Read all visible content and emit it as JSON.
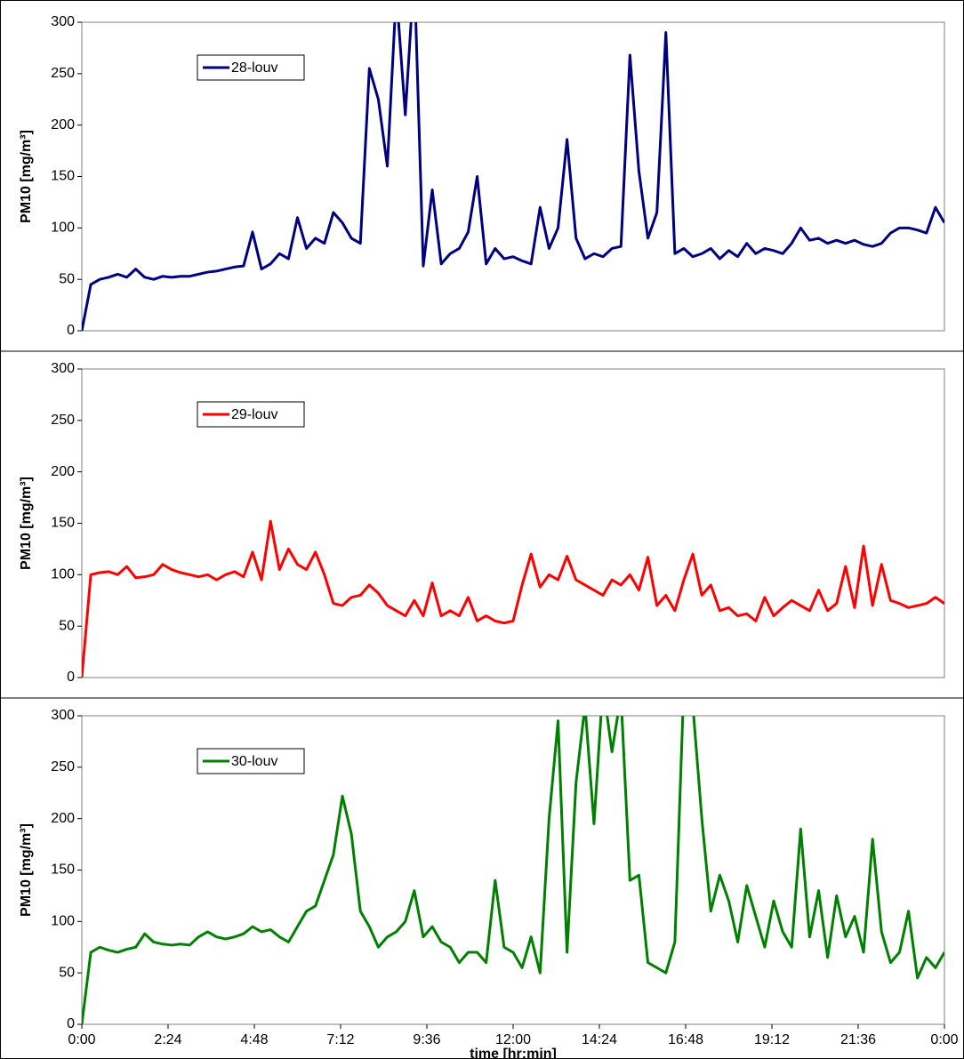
{
  "chart_data": [
    {
      "type": "line",
      "ylabel": "PM10 [mg/m³]",
      "legend": "upper left",
      "xlim": [
        0,
        24
      ],
      "ylim": [
        0,
        300
      ],
      "yticks": [
        0,
        50,
        100,
        150,
        200,
        250,
        300
      ],
      "x": [
        0,
        0.25,
        0.5,
        0.75,
        1,
        1.25,
        1.5,
        1.75,
        2,
        2.25,
        2.5,
        2.75,
        3,
        3.25,
        3.5,
        3.75,
        4,
        4.25,
        4.5,
        4.75,
        5,
        5.25,
        5.5,
        5.75,
        6,
        6.25,
        6.5,
        6.75,
        7,
        7.25,
        7.5,
        7.75,
        8,
        8.25,
        8.5,
        8.75,
        9,
        9.25,
        9.5,
        9.75,
        10,
        10.25,
        10.5,
        10.75,
        11,
        11.25,
        11.5,
        11.75,
        12,
        12.25,
        12.5,
        12.75,
        13,
        13.25,
        13.5,
        13.75,
        14,
        14.25,
        14.5,
        14.75,
        15,
        15.25,
        15.5,
        15.75,
        16,
        16.25,
        16.5,
        16.75,
        17,
        17.25,
        17.5,
        17.75,
        18,
        18.25,
        18.5,
        18.75,
        19,
        19.25,
        19.5,
        19.75,
        20,
        20.25,
        20.5,
        20.75,
        21,
        21.25,
        21.5,
        21.75,
        22,
        22.25,
        22.5,
        22.75,
        23,
        23.25,
        23.5,
        23.75,
        24
      ],
      "series": [
        {
          "name": "28-louv",
          "color": "#000080",
          "values": [
            0,
            45,
            50,
            52,
            55,
            52,
            60,
            52,
            50,
            53,
            52,
            53,
            53,
            55,
            57,
            58,
            60,
            62,
            63,
            96,
            60,
            65,
            75,
            70,
            110,
            80,
            90,
            85,
            115,
            105,
            90,
            85,
            255,
            225,
            160,
            330,
            210,
            350,
            63,
            137,
            65,
            75,
            80,
            96,
            150,
            65,
            80,
            70,
            72,
            68,
            65,
            120,
            80,
            100,
            186,
            90,
            70,
            75,
            72,
            80,
            82,
            268,
            155,
            90,
            115,
            290,
            75,
            80,
            72,
            75,
            80,
            70,
            78,
            72,
            85,
            75,
            80,
            78,
            75,
            85,
            100,
            88,
            90,
            85,
            88,
            85,
            88,
            84,
            82,
            85,
            95,
            100,
            100,
            98,
            95,
            120,
            105
          ]
        }
      ]
    },
    {
      "type": "line",
      "ylabel": "PM10 [mg/m³]",
      "legend": "upper left",
      "xlim": [
        0,
        24
      ],
      "ylim": [
        0,
        300
      ],
      "yticks": [
        0,
        50,
        100,
        150,
        200,
        250,
        300
      ],
      "x": [
        0,
        0.25,
        0.5,
        0.75,
        1,
        1.25,
        1.5,
        1.75,
        2,
        2.25,
        2.5,
        2.75,
        3,
        3.25,
        3.5,
        3.75,
        4,
        4.25,
        4.5,
        4.75,
        5,
        5.25,
        5.5,
        5.75,
        6,
        6.25,
        6.5,
        6.75,
        7,
        7.25,
        7.5,
        7.75,
        8,
        8.25,
        8.5,
        8.75,
        9,
        9.25,
        9.5,
        9.75,
        10,
        10.25,
        10.5,
        10.75,
        11,
        11.25,
        11.5,
        11.75,
        12,
        12.25,
        12.5,
        12.75,
        13,
        13.25,
        13.5,
        13.75,
        14,
        14.25,
        14.5,
        14.75,
        15,
        15.25,
        15.5,
        15.75,
        16,
        16.25,
        16.5,
        16.75,
        17,
        17.25,
        17.5,
        17.75,
        18,
        18.25,
        18.5,
        18.75,
        19,
        19.25,
        19.5,
        19.75,
        20,
        20.25,
        20.5,
        20.75,
        21,
        21.25,
        21.5,
        21.75,
        22,
        22.25,
        22.5,
        22.75,
        23,
        23.25,
        23.5,
        23.75,
        24
      ],
      "series": [
        {
          "name": "29-louv",
          "color": "#ff0000",
          "values": [
            0,
            100,
            102,
            103,
            100,
            108,
            97,
            98,
            100,
            110,
            105,
            102,
            100,
            98,
            100,
            95,
            100,
            103,
            98,
            122,
            95,
            152,
            105,
            125,
            110,
            105,
            122,
            100,
            72,
            70,
            78,
            80,
            90,
            82,
            70,
            65,
            60,
            75,
            60,
            92,
            60,
            65,
            60,
            78,
            55,
            60,
            55,
            53,
            55,
            90,
            120,
            88,
            100,
            95,
            118,
            95,
            90,
            85,
            80,
            95,
            90,
            100,
            85,
            117,
            70,
            80,
            65,
            95,
            120,
            80,
            90,
            65,
            68,
            60,
            62,
            55,
            78,
            60,
            68,
            75,
            70,
            65,
            85,
            65,
            72,
            108,
            68,
            128,
            70,
            110,
            75,
            72,
            68,
            70,
            72,
            78,
            72
          ]
        }
      ]
    },
    {
      "type": "line",
      "ylabel": "PM10 [mg/m³]",
      "xlabel": "time [hr:min]",
      "legend": "upper left",
      "xlim": [
        0,
        24
      ],
      "ylim": [
        0,
        300
      ],
      "yticks": [
        0,
        50,
        100,
        150,
        200,
        250,
        300
      ],
      "xticks": [
        {
          "value": 0,
          "label": "0:00"
        },
        {
          "value": 2.4,
          "label": "2:24"
        },
        {
          "value": 4.8,
          "label": "4:48"
        },
        {
          "value": 7.2,
          "label": "7:12"
        },
        {
          "value": 9.6,
          "label": "9:36"
        },
        {
          "value": 12,
          "label": "12:00"
        },
        {
          "value": 14.4,
          "label": "14:24"
        },
        {
          "value": 16.8,
          "label": "16:48"
        },
        {
          "value": 19.2,
          "label": "19:12"
        },
        {
          "value": 21.6,
          "label": "21:36"
        },
        {
          "value": 24,
          "label": "0:00"
        }
      ],
      "x": [
        0,
        0.25,
        0.5,
        0.75,
        1,
        1.25,
        1.5,
        1.75,
        2,
        2.25,
        2.5,
        2.75,
        3,
        3.25,
        3.5,
        3.75,
        4,
        4.25,
        4.5,
        4.75,
        5,
        5.25,
        5.5,
        5.75,
        6,
        6.25,
        6.5,
        6.75,
        7,
        7.25,
        7.5,
        7.75,
        8,
        8.25,
        8.5,
        8.75,
        9,
        9.25,
        9.5,
        9.75,
        10,
        10.25,
        10.5,
        10.75,
        11,
        11.25,
        11.5,
        11.75,
        12,
        12.25,
        12.5,
        12.75,
        13,
        13.25,
        13.5,
        13.75,
        14,
        14.25,
        14.5,
        14.75,
        15,
        15.25,
        15.5,
        15.75,
        16,
        16.25,
        16.5,
        16.75,
        17,
        17.25,
        17.5,
        17.75,
        18,
        18.25,
        18.5,
        18.75,
        19,
        19.25,
        19.5,
        19.75,
        20,
        20.25,
        20.5,
        20.75,
        21,
        21.25,
        21.5,
        21.75,
        22,
        22.25,
        22.5,
        22.75,
        23,
        23.25,
        23.5,
        23.75,
        24
      ],
      "series": [
        {
          "name": "30-louv",
          "color": "#008000",
          "values": [
            0,
            70,
            75,
            72,
            70,
            73,
            75,
            88,
            80,
            78,
            77,
            78,
            77,
            85,
            90,
            85,
            83,
            85,
            88,
            95,
            90,
            92,
            85,
            80,
            95,
            110,
            115,
            140,
            165,
            222,
            185,
            110,
            95,
            75,
            85,
            90,
            100,
            130,
            85,
            95,
            80,
            75,
            60,
            70,
            70,
            60,
            140,
            75,
            70,
            55,
            85,
            50,
            200,
            295,
            70,
            235,
            310,
            195,
            330,
            265,
            320,
            140,
            145,
            60,
            55,
            50,
            80,
            330,
            310,
            200,
            110,
            145,
            120,
            80,
            135,
            105,
            75,
            120,
            90,
            75,
            190,
            85,
            130,
            65,
            125,
            85,
            105,
            70,
            180,
            90,
            60,
            70,
            110,
            45,
            65,
            55,
            70
          ]
        }
      ]
    }
  ]
}
